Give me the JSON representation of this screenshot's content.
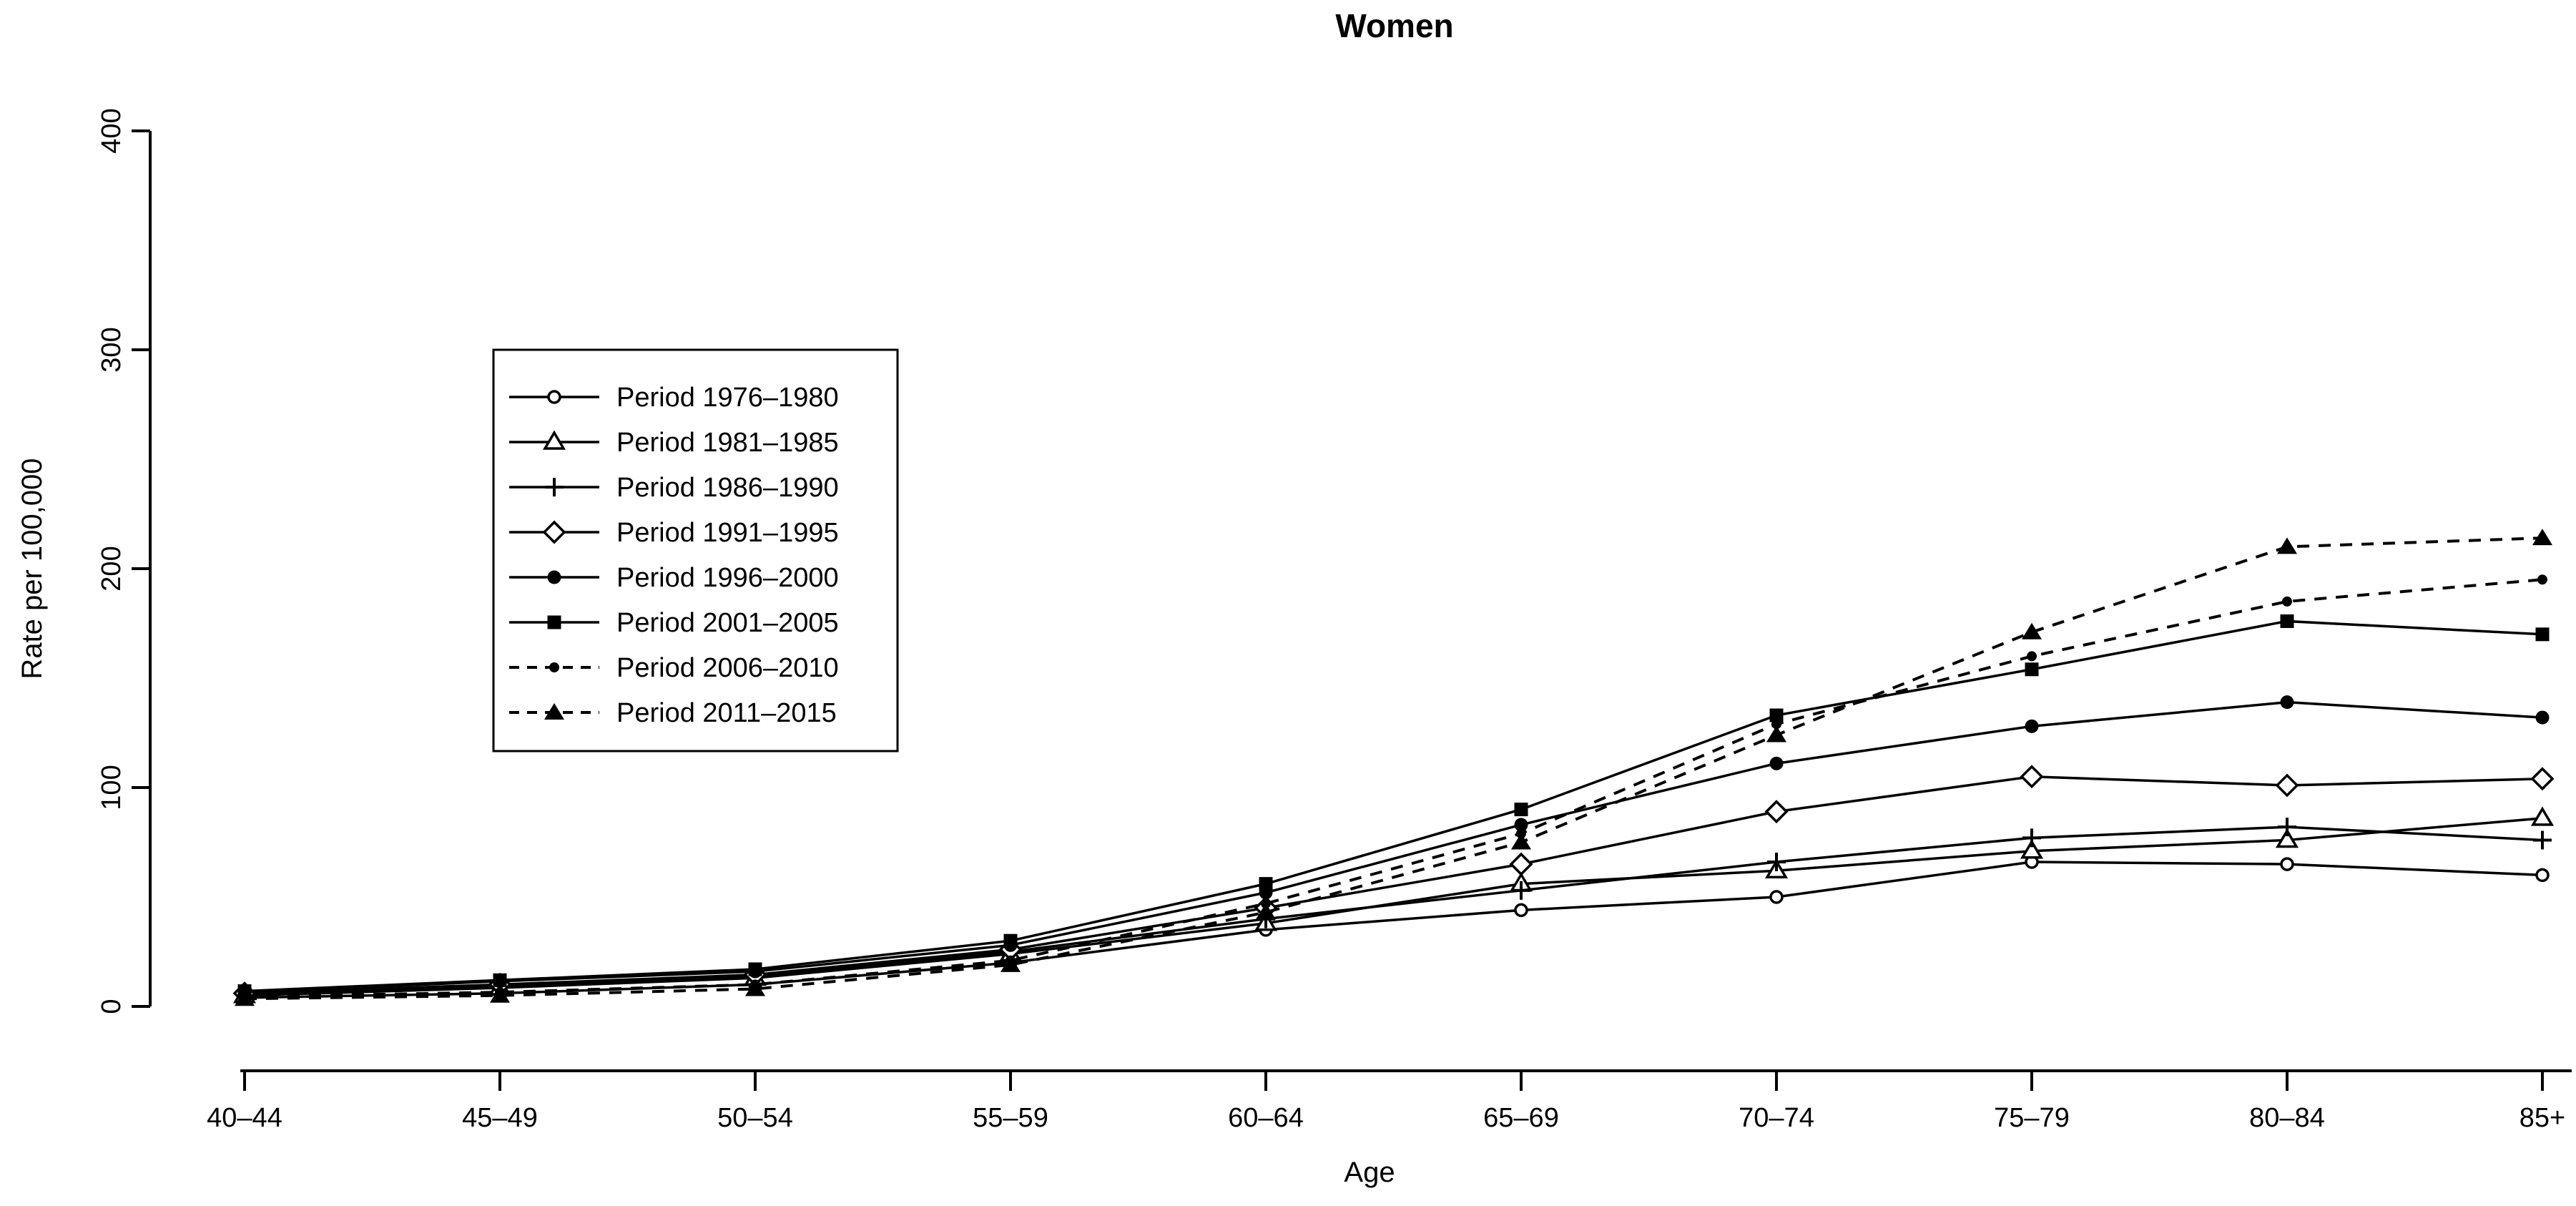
{
  "title": "Women",
  "axes": {
    "x_label": "Age",
    "y_label": "Rate per 100,000",
    "x_ticks": [
      "40–44",
      "45–49",
      "50–54",
      "55–59",
      "60–64",
      "65–69",
      "70–74",
      "75–79",
      "80–84",
      "85+"
    ],
    "y_ticks": [
      "0",
      "100",
      "200",
      "300",
      "400"
    ],
    "y_min": 0,
    "y_max": 400
  },
  "colors": {
    "foreground": "#000000",
    "background": "#ffffff"
  },
  "chart_data": {
    "type": "line",
    "title": "Women",
    "xlabel": "Age",
    "ylabel": "Rate per 100,000",
    "ylim": [
      0,
      400
    ],
    "grid": false,
    "legend_position": "upper-left-inside",
    "categories": [
      "40–44",
      "45–49",
      "50–54",
      "55–59",
      "60–64",
      "65–69",
      "70–74",
      "75–79",
      "80–84",
      "85+"
    ],
    "series": [
      {
        "name": "Period 1976–1980",
        "marker": "open-circle",
        "line": "solid",
        "values": [
          4,
          6,
          10,
          20,
          35,
          44,
          50,
          66,
          65,
          60
        ]
      },
      {
        "name": "Period 1981–1985",
        "marker": "open-triangle",
        "line": "solid",
        "values": [
          5,
          8.5,
          13,
          24,
          38,
          56,
          62,
          71,
          76,
          86
        ]
      },
      {
        "name": "Period 1986–1990",
        "marker": "plus",
        "line": "solid",
        "values": [
          5.5,
          9,
          14,
          25,
          40,
          53,
          66,
          77,
          82,
          76
        ]
      },
      {
        "name": "Period 1991–1995",
        "marker": "open-diamond",
        "line": "solid",
        "values": [
          6,
          10,
          14.5,
          26,
          45,
          65,
          89,
          105,
          101,
          104
        ]
      },
      {
        "name": "Period 1996–2000",
        "marker": "filled-circle",
        "line": "solid",
        "values": [
          6.5,
          11.5,
          16,
          28,
          52,
          83,
          111,
          128,
          139,
          132
        ]
      },
      {
        "name": "Period 2001–2005",
        "marker": "filled-square",
        "line": "solid",
        "values": [
          7,
          12,
          17,
          30,
          56,
          90,
          133,
          154,
          176,
          170
        ]
      },
      {
        "name": "Period 2006–2010",
        "marker": "filled-circle-small",
        "line": "dashed",
        "values": [
          4.5,
          6.5,
          10,
          21,
          47,
          79,
          129,
          160,
          185,
          195
        ]
      },
      {
        "name": "Period 2011–2015",
        "marker": "filled-triangle",
        "line": "dashed",
        "values": [
          3.5,
          5,
          8,
          19,
          43,
          75,
          124,
          171,
          210,
          214
        ]
      }
    ]
  }
}
